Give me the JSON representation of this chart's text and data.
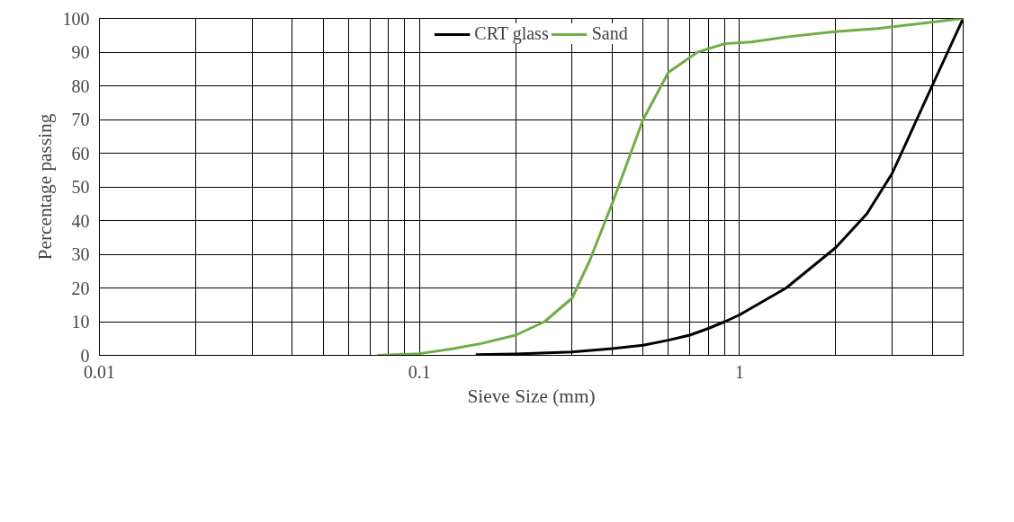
{
  "chart_data": {
    "type": "line",
    "xlabel": "Sieve Size (mm)",
    "ylabel": "Percentage passing",
    "log": "x",
    "grid": true,
    "legend": "top",
    "line_style": "solid",
    "marker": "none",
    "xlim": [
      0.01,
      5
    ],
    "ylim": [
      0,
      100
    ],
    "xticks": [
      0.01,
      {
        "value": 0.02,
        "label": null
      },
      {
        "value": 0.03,
        "label": null
      },
      {
        "value": 0.04,
        "label": null
      },
      {
        "value": 0.05,
        "label": null
      },
      {
        "value": 0.06,
        "label": null
      },
      {
        "value": 0.07,
        "label": null
      },
      {
        "value": 0.08,
        "label": null
      },
      {
        "value": 0.09,
        "label": null
      },
      0.1,
      {
        "value": 0.2,
        "label": null
      },
      {
        "value": 0.3,
        "label": null
      },
      {
        "value": 0.4,
        "label": null
      },
      {
        "value": 0.5,
        "label": null
      },
      {
        "value": 0.6,
        "label": null
      },
      {
        "value": 0.7,
        "label": null
      },
      {
        "value": 0.8,
        "label": null
      },
      {
        "value": 0.9,
        "label": null
      },
      1,
      {
        "value": 2,
        "label": null
      },
      {
        "value": 3,
        "label": null
      },
      {
        "value": 4,
        "label": null
      }
    ],
    "yticks": [
      0,
      10,
      20,
      30,
      40,
      50,
      60,
      70,
      80,
      90,
      100
    ],
    "series": [
      {
        "name": "CRT glass",
        "color": "#000000",
        "x": [
          0.15,
          0.2,
          0.3,
          0.4,
          0.5,
          0.6,
          0.7,
          0.8,
          0.9,
          1,
          1.4,
          2,
          2.5,
          3,
          4,
          5
        ],
        "values": [
          0.2,
          0.4,
          1,
          2,
          3,
          4.5,
          6,
          8,
          10,
          12,
          20,
          32,
          42,
          54,
          80,
          100
        ]
      },
      {
        "name": "Sand",
        "color": "#70ad47",
        "x": [
          0.074,
          0.1,
          0.128,
          0.156,
          0.2,
          0.246,
          0.3,
          0.34,
          0.4,
          0.5,
          0.6,
          0.74,
          0.9,
          1.09,
          1.4,
          1.95,
          2.7,
          5
        ],
        "values": [
          0,
          0.5,
          2,
          3.5,
          6,
          10,
          17,
          28,
          45,
          70,
          84,
          90,
          92.5,
          93,
          94.5,
          96,
          97,
          100
        ]
      }
    ]
  }
}
